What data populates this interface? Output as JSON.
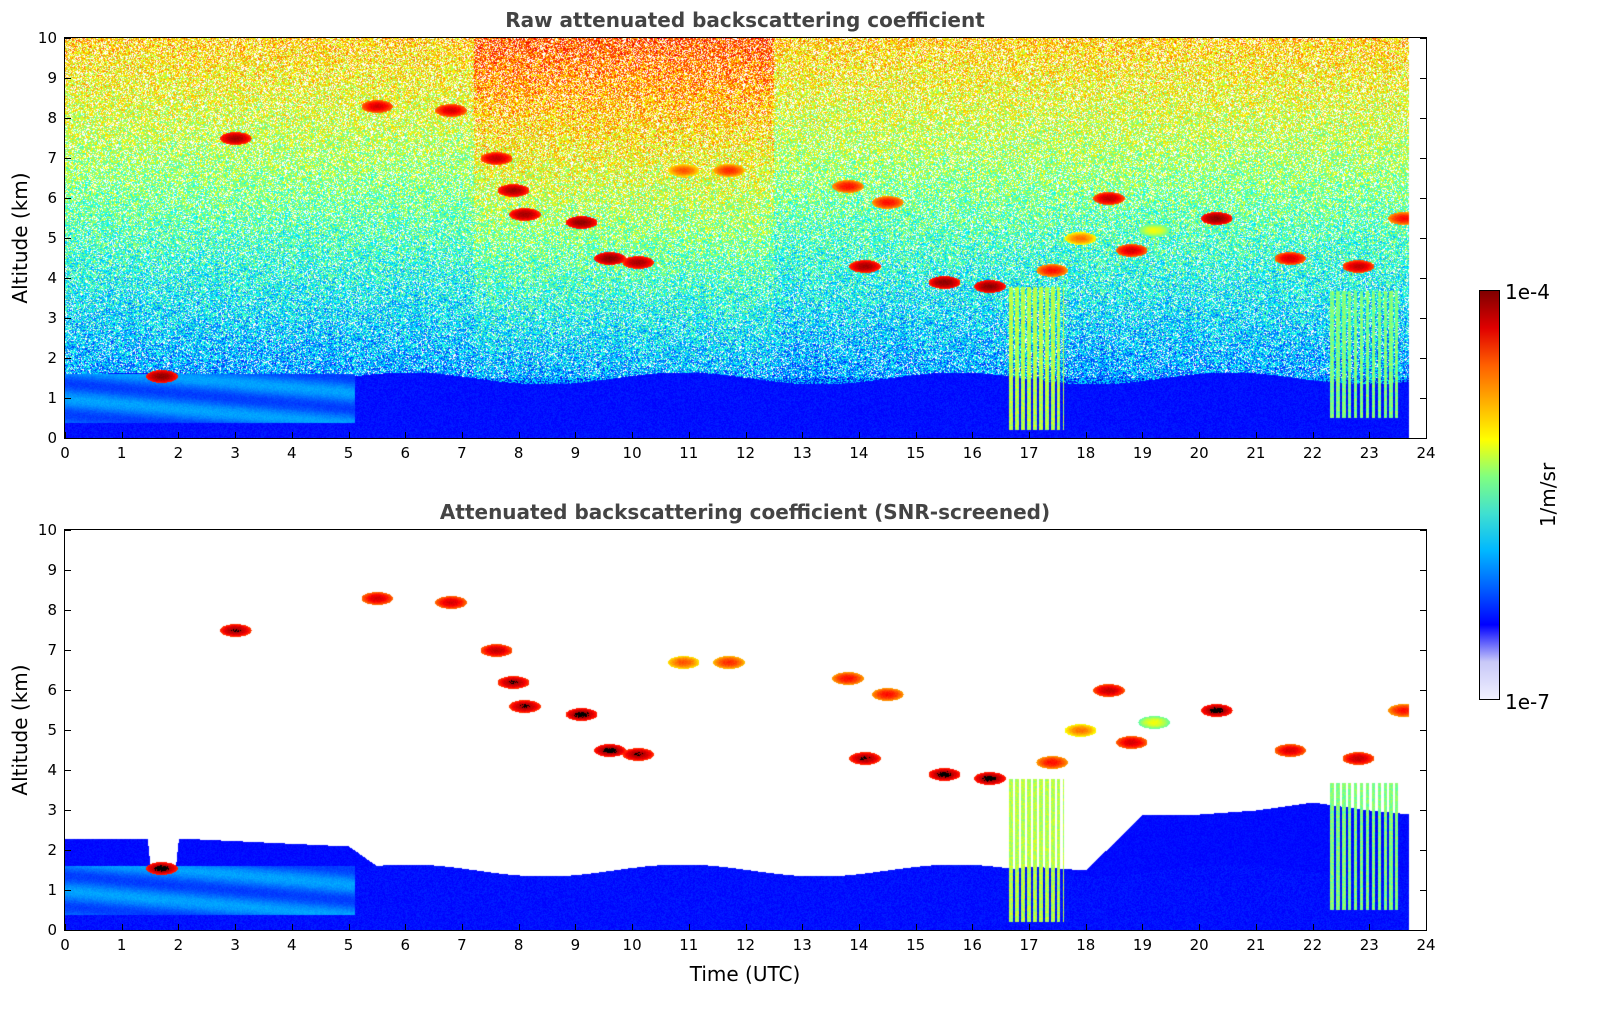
{
  "chart_data": [
    {
      "type": "heatmap",
      "title": "Raw attenuated backscattering coefficient",
      "xlabel": "",
      "ylabel": "Altitude (km)",
      "xlim": [
        0,
        24
      ],
      "ylim": [
        0,
        10
      ],
      "xticks": [
        "0",
        "1",
        "2",
        "3",
        "4",
        "5",
        "6",
        "7",
        "8",
        "9",
        "10",
        "11",
        "12",
        "13",
        "14",
        "15",
        "16",
        "17",
        "18",
        "19",
        "20",
        "21",
        "22",
        "23",
        "24"
      ],
      "yticks": [
        "0",
        "1",
        "2",
        "3",
        "4",
        "5",
        "6",
        "7",
        "8",
        "9",
        "10"
      ],
      "grid": false,
      "features": [
        {
          "kind": "boundary_layer",
          "x0": 0,
          "x1": 23.7,
          "top": 1.5,
          "level": 0.12
        },
        {
          "kind": "aerosol_layer",
          "x0": 0,
          "x1": 5.1,
          "bottom": 0.4,
          "top": 1.6,
          "level": 0.22
        },
        {
          "kind": "cloud",
          "x": 1.7,
          "y": 1.55,
          "level": 0.97
        },
        {
          "kind": "cloud",
          "x": 3.0,
          "y": 7.5,
          "level": 0.95
        },
        {
          "kind": "cloud",
          "x": 5.5,
          "y": 8.3,
          "level": 0.9
        },
        {
          "kind": "cloud",
          "x": 6.8,
          "y": 8.2,
          "level": 0.9
        },
        {
          "kind": "cloud",
          "x": 7.6,
          "y": 7.0,
          "level": 0.92
        },
        {
          "kind": "cloud",
          "x": 7.9,
          "y": 6.2,
          "level": 0.95
        },
        {
          "kind": "cloud",
          "x": 8.1,
          "y": 5.6,
          "level": 0.95
        },
        {
          "kind": "cloud",
          "x": 9.1,
          "y": 5.4,
          "level": 0.97
        },
        {
          "kind": "cloud",
          "x": 9.6,
          "y": 4.5,
          "level": 0.97
        },
        {
          "kind": "cloud",
          "x": 10.1,
          "y": 4.4,
          "level": 0.95
        },
        {
          "kind": "cloud",
          "x": 10.9,
          "y": 6.7,
          "level": 0.78
        },
        {
          "kind": "cloud",
          "x": 11.7,
          "y": 6.7,
          "level": 0.82
        },
        {
          "kind": "cloud",
          "x": 13.8,
          "y": 6.3,
          "level": 0.85
        },
        {
          "kind": "cloud",
          "x": 14.5,
          "y": 5.9,
          "level": 0.85
        },
        {
          "kind": "cloud",
          "x": 14.1,
          "y": 4.3,
          "level": 0.95
        },
        {
          "kind": "cloud",
          "x": 15.5,
          "y": 3.9,
          "level": 0.97
        },
        {
          "kind": "cloud",
          "x": 16.3,
          "y": 3.8,
          "level": 0.97
        },
        {
          "kind": "cloud",
          "x": 17.4,
          "y": 4.2,
          "level": 0.85
        },
        {
          "kind": "cloud",
          "x": 17.9,
          "y": 5.0,
          "level": 0.75
        },
        {
          "kind": "cloud",
          "x": 18.4,
          "y": 6.0,
          "level": 0.92
        },
        {
          "kind": "cloud",
          "x": 18.8,
          "y": 4.7,
          "level": 0.9
        },
        {
          "kind": "cloud",
          "x": 19.2,
          "y": 5.2,
          "level": 0.6
        },
        {
          "kind": "cloud",
          "x": 20.3,
          "y": 5.5,
          "level": 0.97
        },
        {
          "kind": "cloud",
          "x": 21.6,
          "y": 4.5,
          "level": 0.9
        },
        {
          "kind": "cloud",
          "x": 22.8,
          "y": 4.3,
          "level": 0.92
        },
        {
          "kind": "cloud",
          "x": 23.6,
          "y": 5.5,
          "level": 0.85
        },
        {
          "kind": "virga",
          "x0": 16.6,
          "x1": 17.6,
          "top": 3.8,
          "bottom": 0.2,
          "level": 0.5
        },
        {
          "kind": "virga",
          "x0": 22.3,
          "x1": 23.5,
          "top": 3.7,
          "bottom": 0.5,
          "level": 0.45
        }
      ]
    },
    {
      "type": "heatmap",
      "title": "Attenuated backscattering coefficient (SNR-screened)",
      "xlabel": "Time (UTC)",
      "ylabel": "Altitude (km)",
      "xlim": [
        0,
        24
      ],
      "ylim": [
        0,
        10
      ],
      "xticks": [
        "0",
        "1",
        "2",
        "3",
        "4",
        "5",
        "6",
        "7",
        "8",
        "9",
        "10",
        "11",
        "12",
        "13",
        "14",
        "15",
        "16",
        "17",
        "18",
        "19",
        "20",
        "21",
        "22",
        "23",
        "24"
      ],
      "yticks": [
        "0",
        "1",
        "2",
        "3",
        "4",
        "5",
        "6",
        "7",
        "8",
        "9",
        "10"
      ],
      "grid": false,
      "screened_top": [
        [
          0,
          2.3
        ],
        [
          1.45,
          2.3
        ],
        [
          1.5,
          1.6
        ],
        [
          1.95,
          1.6
        ],
        [
          2.0,
          2.3
        ],
        [
          5.0,
          2.1
        ],
        [
          5.5,
          1.6
        ],
        [
          7.0,
          1.4
        ],
        [
          8.0,
          1.2
        ],
        [
          9.0,
          1.3
        ],
        [
          10.0,
          1.1
        ],
        [
          11.0,
          1.2
        ],
        [
          12.0,
          1.3
        ],
        [
          13.0,
          1.2
        ],
        [
          14.0,
          1.3
        ],
        [
          15.0,
          1.4
        ],
        [
          16.0,
          1.4
        ],
        [
          17.0,
          1.6
        ],
        [
          18.0,
          1.5
        ],
        [
          19.0,
          2.9
        ],
        [
          20.0,
          2.9
        ],
        [
          21.0,
          3.0
        ],
        [
          22.0,
          3.2
        ],
        [
          23.0,
          3.0
        ],
        [
          23.7,
          2.9
        ]
      ]
    }
  ],
  "colorbar": {
    "label": "1/m/sr",
    "max_label": "1e-4",
    "min_label": "1e-7",
    "colors": [
      "#f0f0ff",
      "#c8c8f8",
      "#0000ff",
      "#0060ff",
      "#00b8ff",
      "#40e0d0",
      "#80ff80",
      "#ffff00",
      "#ffb000",
      "#ff6000",
      "#e00000",
      "#800000"
    ]
  }
}
